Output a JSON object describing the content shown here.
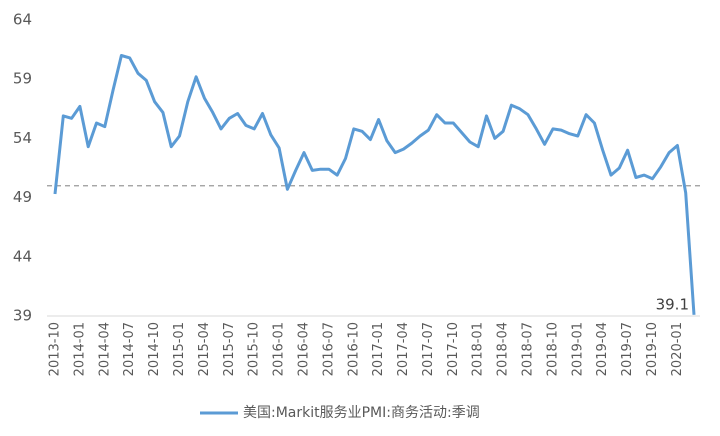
{
  "chart_data": {
    "type": "line",
    "categories": [
      "2013-10",
      null,
      null,
      "2014-01",
      null,
      null,
      "2014-04",
      null,
      null,
      "2014-07",
      null,
      null,
      "2014-10",
      null,
      null,
      "2015-01",
      null,
      null,
      "2015-04",
      null,
      null,
      "2015-07",
      null,
      null,
      "2015-10",
      null,
      null,
      "2016-01",
      null,
      null,
      "2016-04",
      null,
      null,
      "2016-07",
      null,
      null,
      "2016-10",
      null,
      null,
      "2017-01",
      null,
      null,
      "2017-04",
      null,
      null,
      "2017-07",
      null,
      null,
      "2017-10",
      null,
      null,
      "2018-01",
      null,
      null,
      "2018-04",
      null,
      null,
      "2018-07",
      null,
      null,
      "2018-10",
      null,
      null,
      "2019-01",
      null,
      null,
      "2019-04",
      null,
      null,
      "2019-07",
      null,
      null,
      "2019-10",
      null,
      null,
      "2020-01",
      null,
      null
    ],
    "series": [
      {
        "name": "美国:Markit服务业PMI:商务活动:季调",
        "color": "#5b9bd5",
        "values": [
          49.3,
          55.9,
          55.7,
          56.7,
          53.3,
          55.3,
          55.0,
          58.1,
          61.0,
          60.8,
          59.5,
          58.9,
          57.1,
          56.2,
          53.3,
          54.2,
          57.1,
          59.2,
          57.4,
          56.2,
          54.8,
          55.7,
          56.1,
          55.1,
          54.8,
          56.1,
          54.3,
          53.2,
          49.7,
          51.3,
          52.8,
          51.3,
          51.4,
          51.4,
          50.9,
          52.3,
          54.8,
          54.6,
          53.9,
          55.6,
          53.8,
          52.8,
          53.1,
          53.6,
          54.2,
          54.7,
          56.0,
          55.3,
          55.3,
          54.5,
          53.7,
          53.3,
          55.9,
          54.0,
          54.6,
          56.8,
          56.5,
          56.0,
          54.8,
          53.5,
          54.8,
          54.7,
          54.4,
          54.2,
          56.0,
          55.3,
          53.0,
          50.9,
          51.5,
          53.0,
          50.7,
          50.9,
          50.6,
          51.6,
          52.8,
          53.4,
          49.4,
          39.1
        ],
        "value_labels": [
          null,
          null,
          null,
          null,
          null,
          null,
          null,
          null,
          null,
          null,
          null,
          null,
          null,
          null,
          null,
          null,
          null,
          null,
          null,
          null,
          null,
          null,
          null,
          null,
          null,
          null,
          null,
          null,
          null,
          null,
          null,
          null,
          null,
          null,
          null,
          null,
          null,
          null,
          null,
          null,
          null,
          null,
          null,
          null,
          null,
          null,
          null,
          null,
          null,
          null,
          null,
          null,
          null,
          null,
          null,
          null,
          null,
          null,
          null,
          null,
          null,
          null,
          null,
          null,
          null,
          null,
          null,
          null,
          null,
          null,
          null,
          null,
          null,
          null,
          null,
          null,
          null,
          "39.1"
        ]
      }
    ],
    "ylim": [
      39,
      64
    ],
    "yticks": [
      39,
      44,
      49,
      54,
      59,
      64
    ],
    "reference_line": 50,
    "legend": "bottom"
  }
}
